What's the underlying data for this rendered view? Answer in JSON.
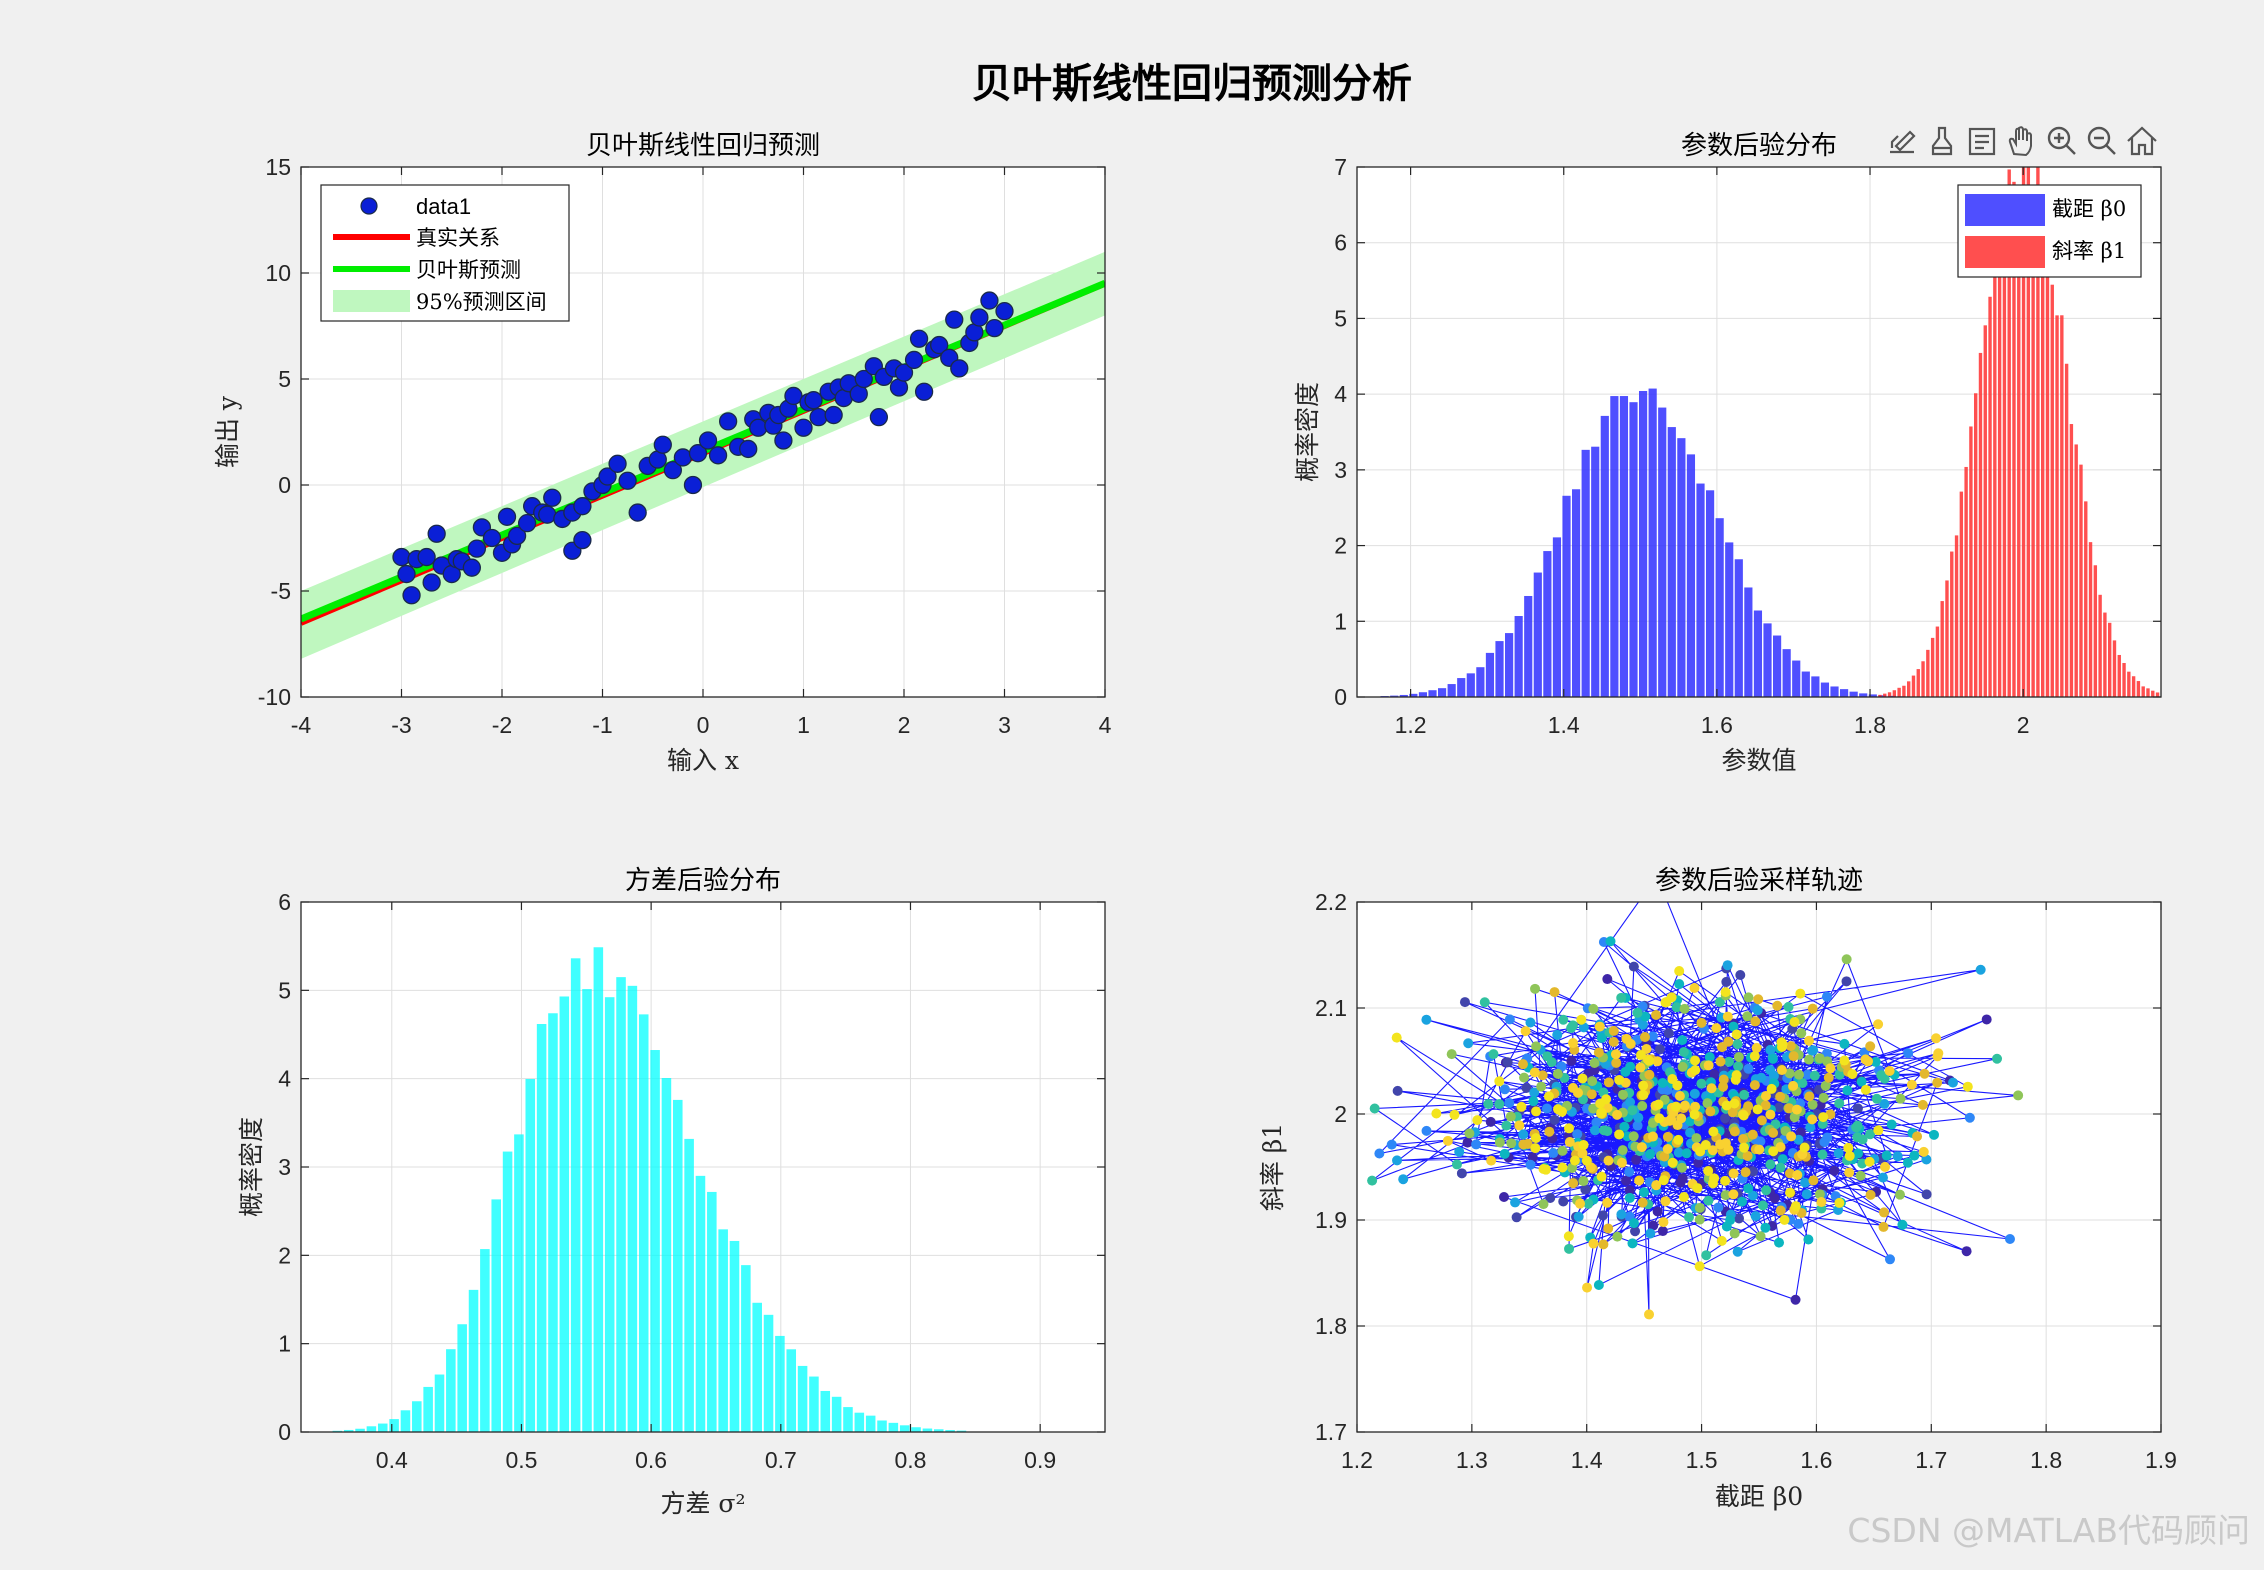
{
  "figure": {
    "suptitle": "贝叶斯线性回归预测分析",
    "watermark": "CSDN @MATLAB代码顾问"
  },
  "toolbar": {
    "icons": [
      "export-icon",
      "brush-icon",
      "datatip-icon",
      "pan-icon",
      "zoom-in-icon",
      "zoom-out-icon",
      "home-icon"
    ]
  },
  "chart_data": [
    {
      "id": "prediction",
      "type": "scatter",
      "title": "贝叶斯线性回归预测",
      "xlabel": "输入 x",
      "ylabel": "输出 y",
      "xlim": [
        -4,
        4
      ],
      "ylim": [
        -10,
        15
      ],
      "xticks": [
        "-4",
        "-3",
        "-2",
        "-1",
        "0",
        "1",
        "2",
        "3",
        "4"
      ],
      "yticks": [
        "-10",
        "-5",
        "0",
        "5",
        "10",
        "15"
      ],
      "grid": true,
      "legend_position": "top-left",
      "legend": [
        "data1",
        "真实关系",
        "贝叶斯预测",
        "95%预测区间"
      ],
      "colors": {
        "points": "#0a1fd6",
        "point_edge": "#1a2a4a",
        "true_line": "#ff0000",
        "pred_line": "#00ee00",
        "band": "#bff7bf"
      },
      "true_line": {
        "intercept": 1.5,
        "slope": 2.0
      },
      "pred_line": {
        "intercept": 1.6,
        "slope": 1.98
      },
      "band": {
        "lower_at_xmin": -8.2,
        "upper_at_xmin": -5.0,
        "lower_at_xmax": 8.0,
        "upper_at_xmax": 11.0
      },
      "points": [
        [
          -3.0,
          -3.4
        ],
        [
          -2.95,
          -4.2
        ],
        [
          -2.9,
          -5.2
        ],
        [
          -2.85,
          -3.5
        ],
        [
          -2.75,
          -3.4
        ],
        [
          -2.7,
          -4.6
        ],
        [
          -2.65,
          -2.3
        ],
        [
          -2.6,
          -3.8
        ],
        [
          -2.5,
          -4.2
        ],
        [
          -2.45,
          -3.5
        ],
        [
          -2.4,
          -3.6
        ],
        [
          -2.3,
          -3.9
        ],
        [
          -2.25,
          -3.0
        ],
        [
          -2.2,
          -2.0
        ],
        [
          -2.1,
          -2.5
        ],
        [
          -2.0,
          -3.2
        ],
        [
          -1.95,
          -1.5
        ],
        [
          -1.9,
          -2.8
        ],
        [
          -1.85,
          -2.4
        ],
        [
          -1.75,
          -1.8
        ],
        [
          -1.7,
          -1.0
        ],
        [
          -1.6,
          -1.3
        ],
        [
          -1.55,
          -1.4
        ],
        [
          -1.5,
          -0.6
        ],
        [
          -1.4,
          -1.6
        ],
        [
          -1.3,
          -1.3
        ],
        [
          -1.3,
          -3.1
        ],
        [
          -1.2,
          -2.6
        ],
        [
          -1.2,
          -1.0
        ],
        [
          -1.1,
          -0.3
        ],
        [
          -1.0,
          0.0
        ],
        [
          -0.95,
          0.4
        ],
        [
          -0.85,
          1.0
        ],
        [
          -0.75,
          0.2
        ],
        [
          -0.65,
          -1.3
        ],
        [
          -0.55,
          0.9
        ],
        [
          -0.45,
          1.2
        ],
        [
          -0.4,
          1.9
        ],
        [
          -0.3,
          0.7
        ],
        [
          -0.2,
          1.3
        ],
        [
          -0.1,
          0.0
        ],
        [
          -0.05,
          1.5
        ],
        [
          0.05,
          2.1
        ],
        [
          0.15,
          1.4
        ],
        [
          0.25,
          3.0
        ],
        [
          0.35,
          1.8
        ],
        [
          0.45,
          1.7
        ],
        [
          0.5,
          3.1
        ],
        [
          0.55,
          2.7
        ],
        [
          0.65,
          3.4
        ],
        [
          0.7,
          2.8
        ],
        [
          0.75,
          3.3
        ],
        [
          0.8,
          2.1
        ],
        [
          0.85,
          3.6
        ],
        [
          0.9,
          4.2
        ],
        [
          1.0,
          2.7
        ],
        [
          1.05,
          3.9
        ],
        [
          1.1,
          4.0
        ],
        [
          1.15,
          3.2
        ],
        [
          1.25,
          4.4
        ],
        [
          1.3,
          3.3
        ],
        [
          1.35,
          4.6
        ],
        [
          1.4,
          4.1
        ],
        [
          1.45,
          4.8
        ],
        [
          1.55,
          4.3
        ],
        [
          1.6,
          5.0
        ],
        [
          1.7,
          5.6
        ],
        [
          1.75,
          3.2
        ],
        [
          1.8,
          5.1
        ],
        [
          1.9,
          5.5
        ],
        [
          1.95,
          4.6
        ],
        [
          2.0,
          5.3
        ],
        [
          2.1,
          5.9
        ],
        [
          2.15,
          6.9
        ],
        [
          2.2,
          4.4
        ],
        [
          2.3,
          6.4
        ],
        [
          2.35,
          6.6
        ],
        [
          2.45,
          6.0
        ],
        [
          2.5,
          7.8
        ],
        [
          2.55,
          5.5
        ],
        [
          2.65,
          6.7
        ],
        [
          2.7,
          7.2
        ],
        [
          2.75,
          7.9
        ],
        [
          2.85,
          8.7
        ],
        [
          2.9,
          7.4
        ],
        [
          3.0,
          8.2
        ]
      ]
    },
    {
      "id": "param_posterior",
      "type": "bar",
      "title": "参数后验分布",
      "xlabel": "参数值",
      "ylabel": "概率密度",
      "xlim": [
        1.13,
        2.18
      ],
      "ylim": [
        0,
        7
      ],
      "xticks": [
        "1.2",
        "1.4",
        "1.6",
        "1.8",
        "2"
      ],
      "yticks": [
        "0",
        "1",
        "2",
        "3",
        "4",
        "5",
        "6",
        "7"
      ],
      "grid": true,
      "legend_position": "top-right",
      "legend": [
        "截距 β0",
        "斜率 β1"
      ],
      "series": [
        {
          "name": "截距 β0",
          "color": "#3030ff",
          "mean": 1.5,
          "sd": 0.098,
          "bin_width": 0.0125,
          "range": [
            1.16,
            1.85
          ],
          "alpha": 0.85
        },
        {
          "name": "斜率 β1",
          "color": "#ff3030",
          "mean": 2.0,
          "sd": 0.0565,
          "bin_width": 0.00625,
          "range": [
            1.81,
            2.18
          ],
          "alpha": 0.85
        }
      ]
    },
    {
      "id": "variance_posterior",
      "type": "bar",
      "title": "方差后验分布",
      "xlabel": "方差 σ²",
      "ylabel": "概率密度",
      "xlim": [
        0.33,
        0.95
      ],
      "ylim": [
        0,
        6
      ],
      "xticks": [
        "0.4",
        "0.5",
        "0.6",
        "0.7",
        "0.8",
        "0.9"
      ],
      "yticks": [
        "0",
        "1",
        "2",
        "3",
        "4",
        "5",
        "6"
      ],
      "grid": true,
      "series": [
        {
          "name": "",
          "color": "#00ffff",
          "bin_width": 0.00875,
          "range": [
            0.345,
            0.945
          ],
          "alpha": 0.75,
          "mode": 0.548,
          "sd_left": 0.055,
          "sd_right": 0.085,
          "peak": 5.3
        }
      ]
    },
    {
      "id": "trace",
      "type": "scatter",
      "title": "参数后验采样轨迹",
      "xlabel": "截距 β0",
      "ylabel": "斜率 β1",
      "xlim": [
        1.2,
        1.9
      ],
      "ylim": [
        1.7,
        2.2
      ],
      "xticks": [
        "1.2",
        "1.3",
        "1.4",
        "1.5",
        "1.6",
        "1.7",
        "1.8",
        "1.9"
      ],
      "yticks": [
        "1.7",
        "1.8",
        "1.9",
        "2",
        "2.1",
        "2.2"
      ],
      "grid": true,
      "colors": {
        "line": "#0000ff",
        "palette": [
          "#3e26a8",
          "#4145ab",
          "#2e87f7",
          "#1aa3e0",
          "#0cb6c0",
          "#31c19f",
          "#8fc559",
          "#e3b82c",
          "#f9d130",
          "#f3e41e"
        ]
      },
      "samples": {
        "count": 900,
        "mean": [
          1.5,
          2.0
        ],
        "sd": [
          0.1,
          0.057
        ]
      }
    }
  ]
}
